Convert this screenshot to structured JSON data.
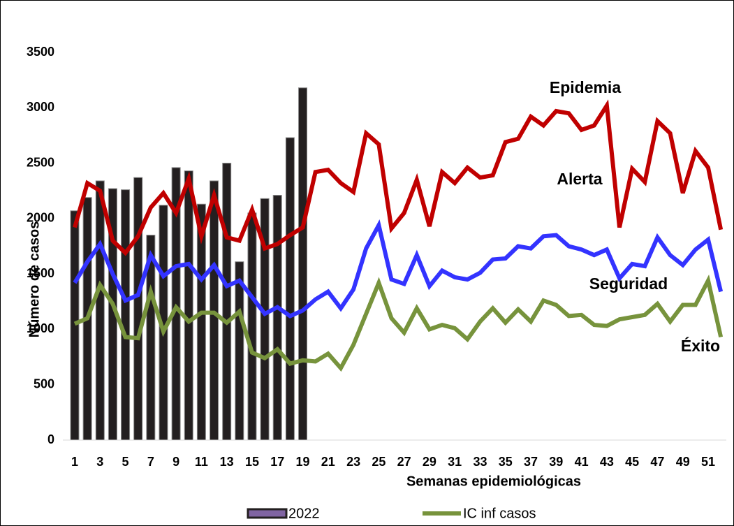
{
  "chart_data": {
    "type": "bar",
    "ylabel": "Número de casos",
    "xlabel": "Semanas epidemiológicas",
    "categories": [
      1,
      null,
      3,
      null,
      5,
      null,
      7,
      null,
      9,
      null,
      11,
      null,
      13,
      null,
      15,
      null,
      17,
      null,
      19,
      null,
      21,
      null,
      23,
      null,
      25,
      null,
      27,
      null,
      29,
      null,
      31,
      null,
      33,
      null,
      35,
      null,
      37,
      null,
      39,
      null,
      41,
      null,
      43,
      null,
      45,
      null,
      47,
      null,
      49,
      null,
      51,
      null
    ],
    "ylim": [
      0,
      3500
    ],
    "yticks": [
      0,
      500,
      1000,
      1500,
      2000,
      2500,
      3000,
      3500
    ],
    "legend": "bottom",
    "series": [
      {
        "name": "2022",
        "type": "bar",
        "color": "#231f20",
        "legend_color": "#8064a2",
        "values": [
          2070,
          2190,
          2340,
          2270,
          2260,
          2370,
          1850,
          2120,
          2460,
          2430,
          2130,
          2340,
          2500,
          1610,
          2050,
          2180,
          2210,
          2730,
          3180,
          null,
          null,
          null,
          null,
          null,
          null,
          null,
          null,
          null,
          null,
          null,
          null,
          null,
          null,
          null,
          null,
          null,
          null,
          null,
          null,
          null,
          null,
          null,
          null,
          null,
          null,
          null,
          null,
          null,
          null,
          null,
          null,
          null
        ]
      },
      {
        "type": "line",
        "color": "#c00000",
        "values": [
          1920,
          2320,
          2250,
          1800,
          1690,
          1840,
          2100,
          2230,
          2050,
          2360,
          1840,
          2210,
          1830,
          1800,
          2080,
          1730,
          1770,
          1850,
          1920,
          2420,
          2440,
          2320,
          2240,
          2770,
          2670,
          1910,
          2050,
          2350,
          1930,
          2420,
          2320,
          2460,
          2370,
          2390,
          2690,
          2720,
          2920,
          2840,
          2970,
          2950,
          2800,
          2840,
          3020,
          1920,
          2450,
          2330,
          2880,
          2770,
          2230,
          2610,
          2460,
          1900
        ]
      },
      {
        "type": "line",
        "color": "#3333ff",
        "values": [
          1420,
          1610,
          1770,
          1500,
          1260,
          1310,
          1670,
          1480,
          1570,
          1590,
          1450,
          1580,
          1390,
          1440,
          1290,
          1140,
          1200,
          1120,
          1170,
          1270,
          1340,
          1190,
          1360,
          1730,
          1940,
          1450,
          1410,
          1670,
          1390,
          1530,
          1470,
          1450,
          1510,
          1630,
          1640,
          1750,
          1730,
          1840,
          1850,
          1750,
          1720,
          1670,
          1720,
          1460,
          1590,
          1570,
          1830,
          1670,
          1580,
          1720,
          1810,
          1340
        ]
      },
      {
        "name": "IC inf casos",
        "type": "line",
        "color": "#77933c",
        "values": [
          1050,
          1100,
          1400,
          1230,
          930,
          920,
          1340,
          980,
          1200,
          1070,
          1150,
          1150,
          1060,
          1160,
          790,
          740,
          820,
          690,
          720,
          710,
          780,
          650,
          860,
          1140,
          1420,
          1100,
          970,
          1190,
          1000,
          1040,
          1010,
          910,
          1070,
          1190,
          1060,
          1180,
          1070,
          1260,
          1220,
          1120,
          1130,
          1040,
          1030,
          1090,
          1110,
          1130,
          1230,
          1070,
          1220,
          1220,
          1440,
          930
        ]
      }
    ],
    "annotations": [
      {
        "text": "Epidemia"
      },
      {
        "text": "Alerta"
      },
      {
        "text": "Seguridad"
      },
      {
        "text": "Éxito"
      }
    ]
  }
}
